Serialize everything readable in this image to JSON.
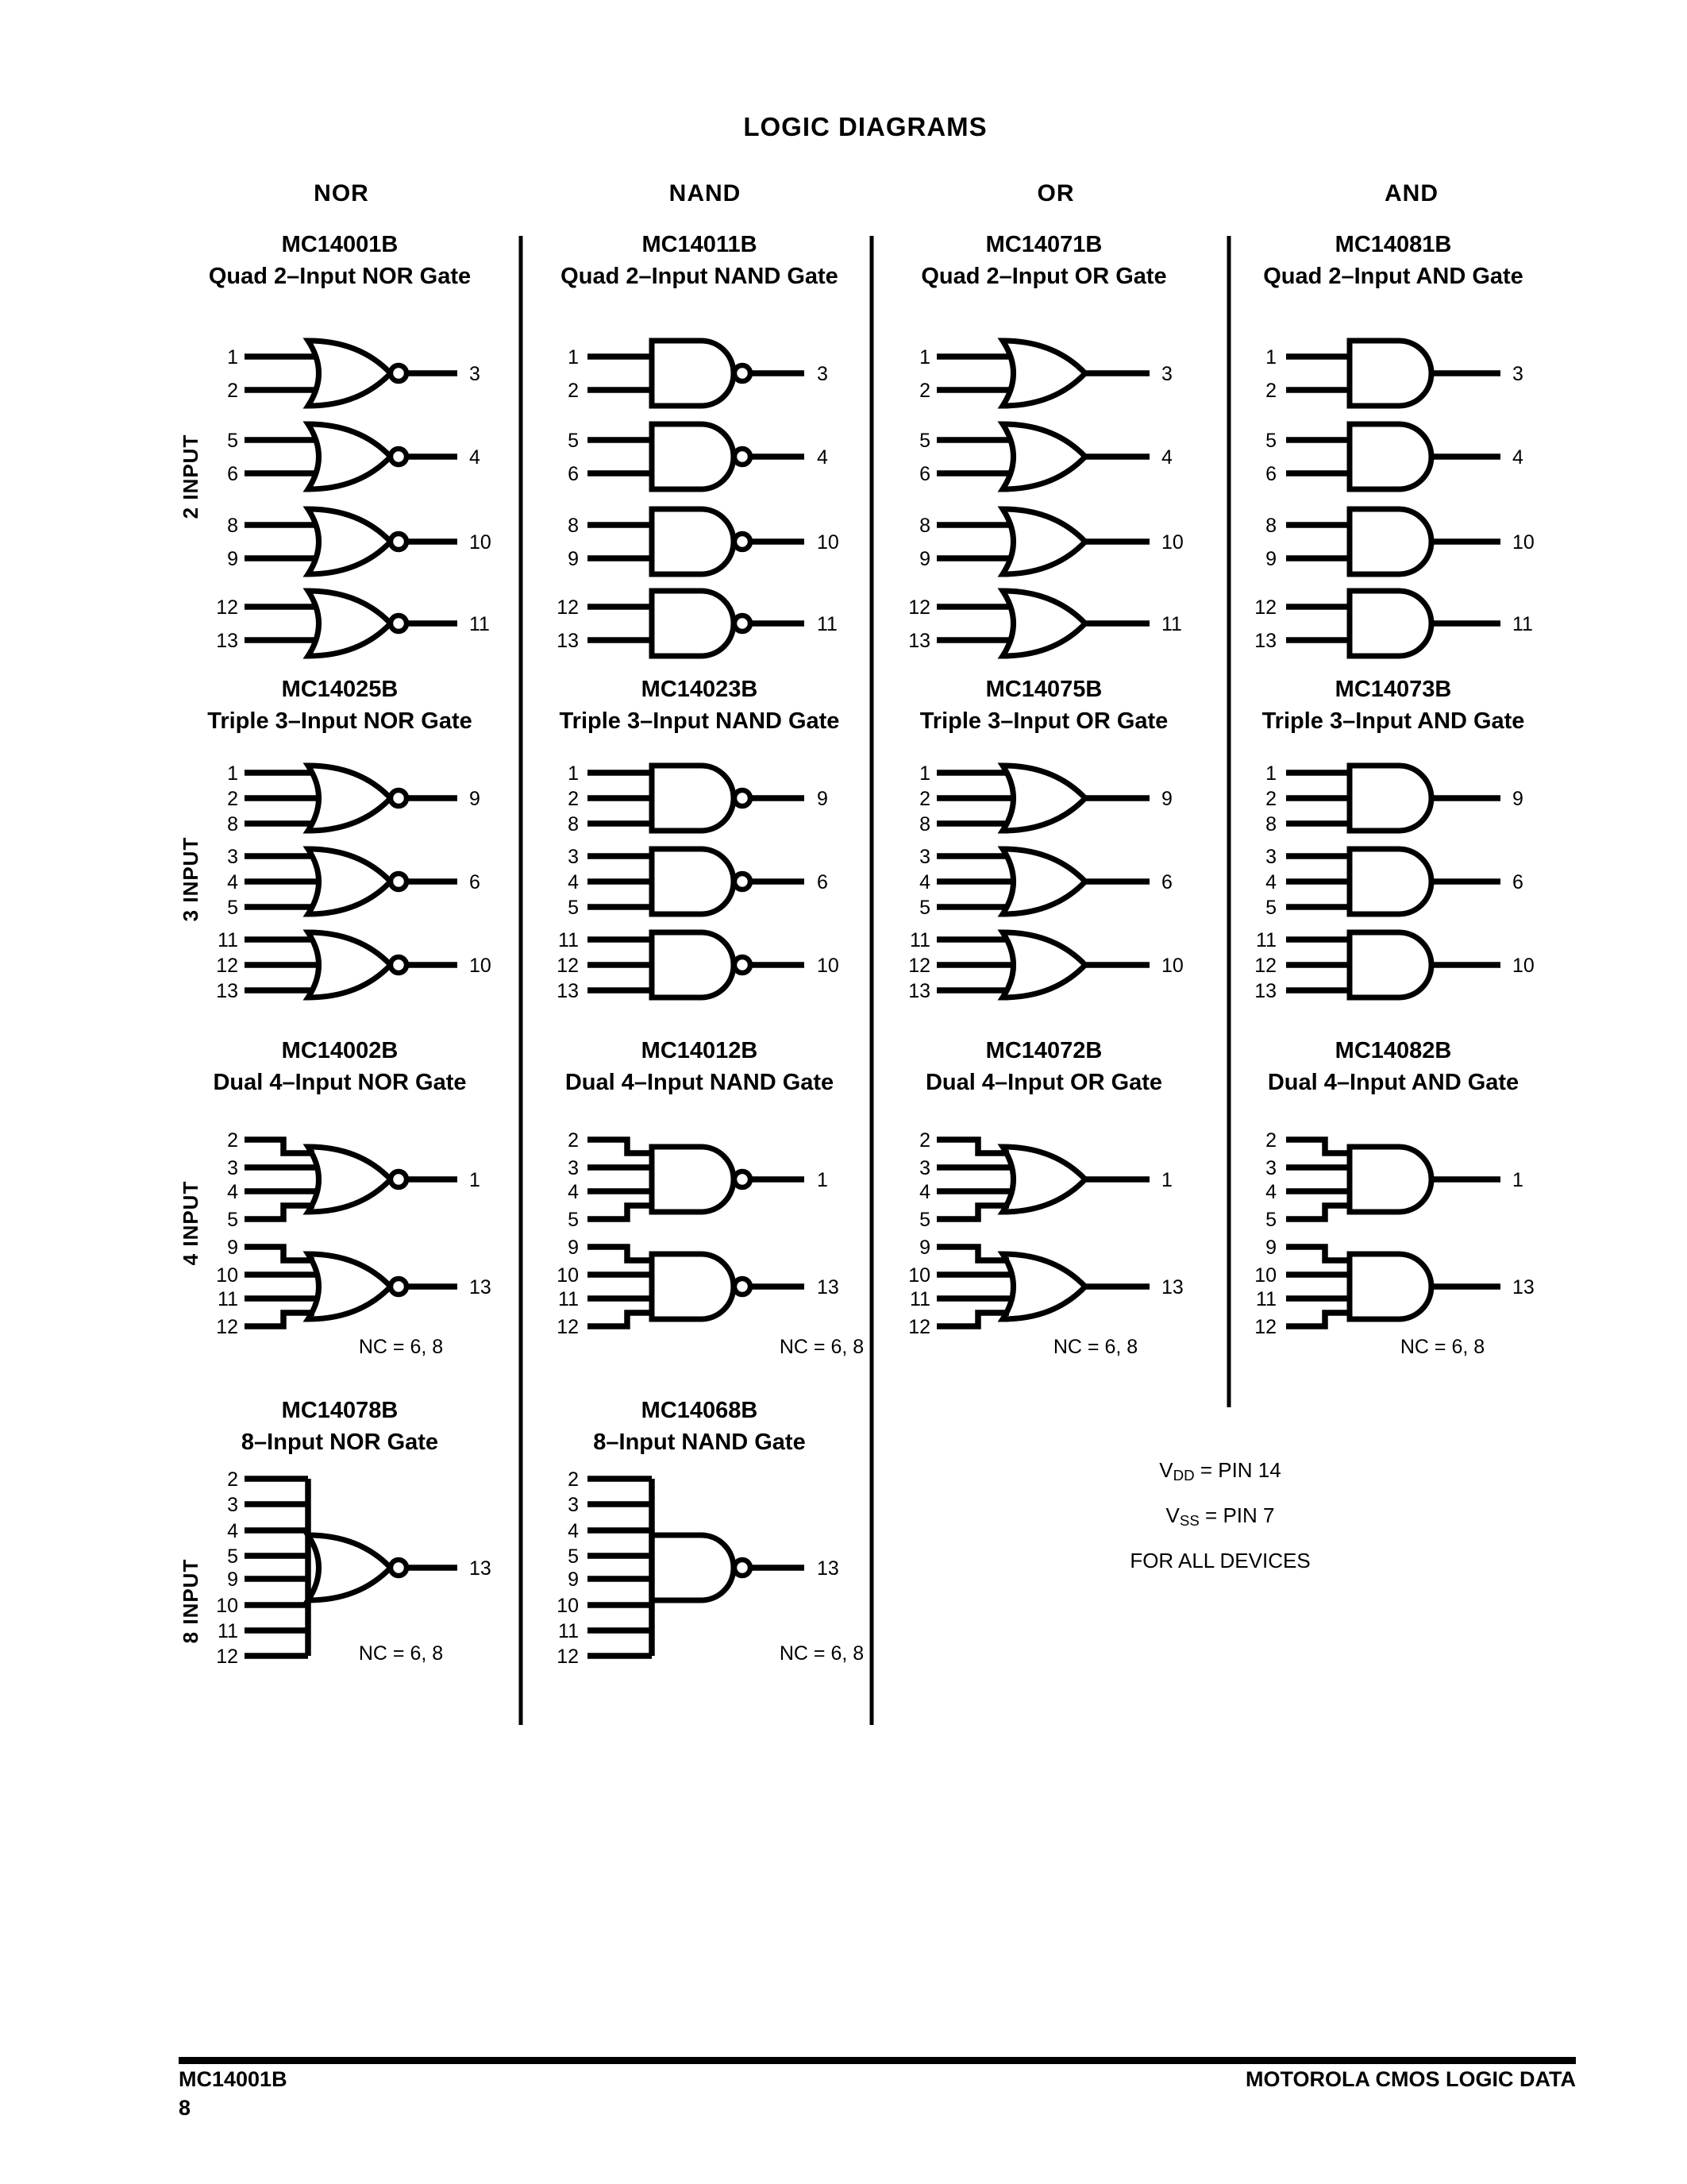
{
  "page": {
    "title": "LOGIC DIAGRAMS"
  },
  "columns": [
    {
      "header": "NOR",
      "gate_type": "nor",
      "parts": [
        {
          "part_number": "MC14001B",
          "description": "Quad 2–Input NOR Gate"
        },
        {
          "part_number": "MC14025B",
          "description": "Triple 3–Input NOR Gate"
        },
        {
          "part_number": "MC14002B",
          "description": "Dual 4–Input NOR Gate",
          "nc_note": "NC = 6, 8"
        },
        {
          "part_number": "MC14078B",
          "description": "8–Input NOR Gate",
          "nc_note": "NC = 6, 8"
        }
      ]
    },
    {
      "header": "NAND",
      "gate_type": "nand",
      "parts": [
        {
          "part_number": "MC14011B",
          "description": "Quad 2–Input NAND Gate"
        },
        {
          "part_number": "MC14023B",
          "description": "Triple 3–Input NAND Gate"
        },
        {
          "part_number": "MC14012B",
          "description": "Dual 4–Input NAND Gate",
          "nc_note": "NC = 6, 8"
        },
        {
          "part_number": "MC14068B",
          "description": "8–Input NAND Gate",
          "nc_note": "NC = 6, 8"
        }
      ]
    },
    {
      "header": "OR",
      "gate_type": "or",
      "parts": [
        {
          "part_number": "MC14071B",
          "description": "Quad 2–Input OR Gate"
        },
        {
          "part_number": "MC14075B",
          "description": "Triple 3–Input OR Gate"
        },
        {
          "part_number": "MC14072B",
          "description": "Dual 4–Input OR Gate",
          "nc_note": "NC = 6, 8"
        }
      ]
    },
    {
      "header": "AND",
      "gate_type": "and",
      "parts": [
        {
          "part_number": "MC14081B",
          "description": "Quad 2–Input AND Gate"
        },
        {
          "part_number": "MC14073B",
          "description": "Triple 3–Input AND Gate"
        },
        {
          "part_number": "MC14082B",
          "description": "Dual 4–Input AND Gate",
          "nc_note": "NC = 6, 8"
        }
      ]
    }
  ],
  "rows": [
    {
      "side_label": "2 INPUT",
      "gates": [
        {
          "inputs": [
            "1",
            "2"
          ],
          "output": "3"
        },
        {
          "inputs": [
            "5",
            "6"
          ],
          "output": "4"
        },
        {
          "inputs": [
            "8",
            "9"
          ],
          "output": "10"
        },
        {
          "inputs": [
            "12",
            "13"
          ],
          "output": "11"
        }
      ]
    },
    {
      "side_label": "3 INPUT",
      "gates": [
        {
          "inputs": [
            "1",
            "2",
            "8"
          ],
          "output": "9"
        },
        {
          "inputs": [
            "3",
            "4",
            "5"
          ],
          "output": "6"
        },
        {
          "inputs": [
            "11",
            "12",
            "13"
          ],
          "output": "10"
        }
      ]
    },
    {
      "side_label": "4 INPUT",
      "gates": [
        {
          "inputs": [
            "2",
            "3",
            "4",
            "5"
          ],
          "output": "1"
        },
        {
          "inputs": [
            "9",
            "10",
            "11",
            "12"
          ],
          "output": "13"
        }
      ]
    },
    {
      "side_label": "8 INPUT",
      "gates": [
        {
          "inputs": [
            "2",
            "3",
            "4",
            "5",
            "9",
            "10",
            "11",
            "12"
          ],
          "output": "13"
        }
      ]
    }
  ],
  "note": {
    "lines": [
      {
        "pre": "V",
        "sub": "DD",
        "post": " = PIN 14"
      },
      {
        "pre": "V",
        "sub": "SS",
        "post": " = PIN 7"
      },
      {
        "pre": "FOR ALL DEVICES",
        "sub": "",
        "post": ""
      }
    ]
  },
  "footer": {
    "left_part": "MC14001B",
    "page_number": "8",
    "right": "MOTOROLA CMOS LOGIC DATA"
  }
}
